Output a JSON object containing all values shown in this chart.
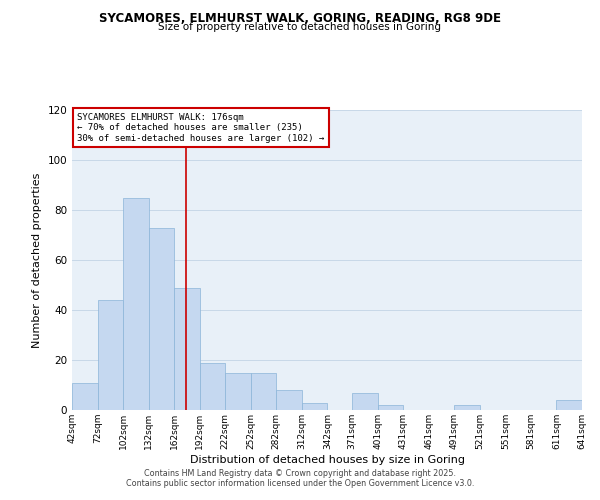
{
  "title1": "SYCAMORES, ELMHURST WALK, GORING, READING, RG8 9DE",
  "title2": "Size of property relative to detached houses in Goring",
  "xlabel": "Distribution of detached houses by size in Goring",
  "ylabel": "Number of detached properties",
  "bar_color": "#c5d8f0",
  "bar_edge_color": "#8ab4d8",
  "vline_x": 176,
  "vline_color": "#cc0000",
  "annotation_line1": "SYCAMORES ELMHURST WALK: 176sqm",
  "annotation_line2": "← 70% of detached houses are smaller (235)",
  "annotation_line3": "30% of semi-detached houses are larger (102) →",
  "bins": [
    42,
    72,
    102,
    132,
    162,
    192,
    222,
    252,
    282,
    312,
    342,
    371,
    401,
    431,
    461,
    491,
    521,
    551,
    581,
    611,
    641
  ],
  "counts": [
    11,
    44,
    85,
    73,
    49,
    19,
    15,
    15,
    8,
    3,
    0,
    7,
    2,
    0,
    0,
    2,
    0,
    0,
    0,
    4
  ],
  "tick_labels": [
    "42sqm",
    "72sqm",
    "102sqm",
    "132sqm",
    "162sqm",
    "192sqm",
    "222sqm",
    "252sqm",
    "282sqm",
    "312sqm",
    "342sqm",
    "371sqm",
    "401sqm",
    "431sqm",
    "461sqm",
    "491sqm",
    "521sqm",
    "551sqm",
    "581sqm",
    "611sqm",
    "641sqm"
  ],
  "ylim": [
    0,
    120
  ],
  "yticks": [
    0,
    20,
    40,
    60,
    80,
    100,
    120
  ],
  "footer1": "Contains HM Land Registry data © Crown copyright and database right 2025.",
  "footer2": "Contains public sector information licensed under the Open Government Licence v3.0.",
  "background_color": "#ffffff",
  "plot_bg_color": "#e8f0f8",
  "grid_color": "#c8d8e8"
}
